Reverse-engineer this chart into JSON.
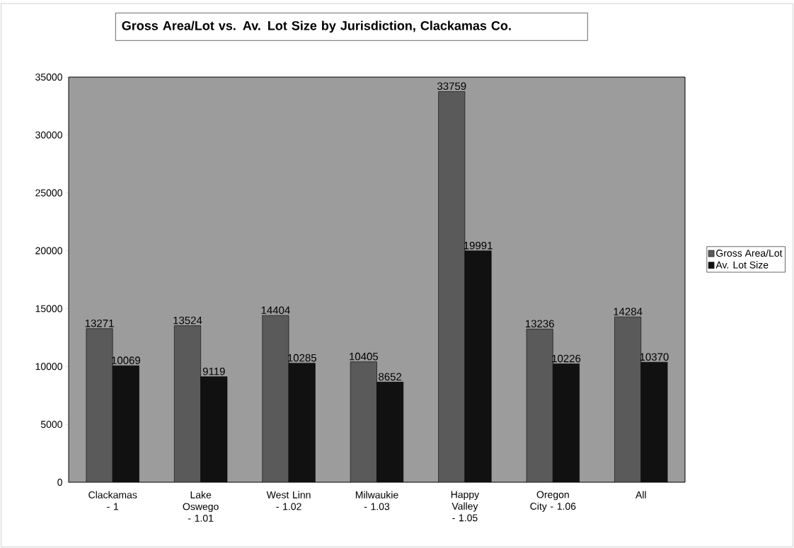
{
  "chart_data": {
    "type": "bar",
    "title": "Gross Area/Lot vs. Av. Lot Size by Jurisdiction, Clackamas Co.",
    "categories": [
      "Clackamas - 1",
      "Lake Oswego - 1.01",
      "West Linn - 1.02",
      "Milwaukie - 1.03",
      "Happy Valley - 1.05",
      "Oregon City - 1.06",
      "All"
    ],
    "series": [
      {
        "name": "Gross Area/Lot",
        "color": "#5a5a5a",
        "values": [
          13271,
          13524,
          14404,
          10405,
          33759,
          13236,
          14284
        ]
      },
      {
        "name": "Av. Lot Size",
        "color": "#111111",
        "values": [
          10069,
          9119,
          10285,
          8652,
          19991,
          10226,
          10370
        ]
      }
    ],
    "ylim": [
      0,
      35000
    ],
    "yticks": [
      0,
      5000,
      10000,
      15000,
      20000,
      25000,
      30000,
      35000
    ],
    "data_labels": true,
    "legend": "right"
  }
}
